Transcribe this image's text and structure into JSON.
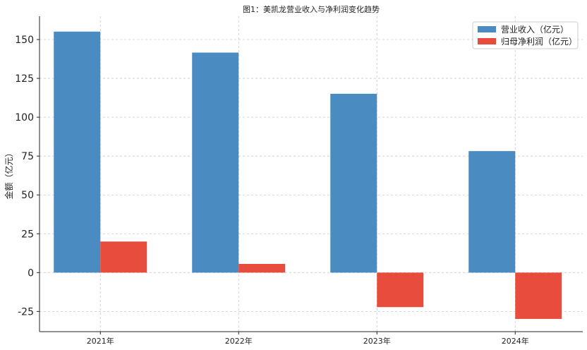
{
  "chart_data": {
    "type": "bar",
    "title": "图1：美凯龙营业收入与净利润变化趋势",
    "xlabel": "",
    "ylabel": "金额（亿元）",
    "categories": [
      "2021年",
      "2022年",
      "2023年",
      "2024年"
    ],
    "series": [
      {
        "name": "营业收入（亿元）",
        "values": [
          155.1,
          141.6,
          115.1,
          78.2
        ],
        "color": "#4a8bc2"
      },
      {
        "name": "归母净利润（亿元）",
        "values": [
          20.0,
          5.6,
          -22.2,
          -29.8
        ],
        "color": "#e74c3c"
      }
    ],
    "ylim": [
      -38,
      165
    ],
    "yticks": [
      -25,
      0,
      25,
      50,
      75,
      100,
      125,
      150
    ],
    "grid": true,
    "legend_position": "top-right"
  }
}
